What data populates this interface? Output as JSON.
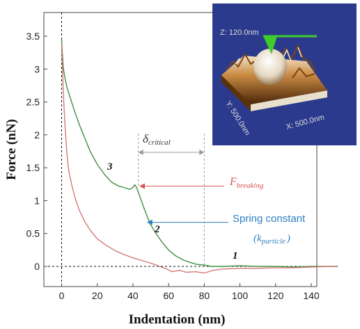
{
  "chart_data": {
    "type": "line",
    "xlabel": "Indentation (nm)",
    "ylabel": "Force (nN)",
    "xlim": [
      -5,
      157
    ],
    "ylim": [
      -0.2,
      3.55
    ],
    "xticks": [
      0,
      20,
      40,
      60,
      80,
      100,
      120,
      140
    ],
    "yticks": [
      0,
      0.5,
      1,
      1.5,
      2,
      2.5,
      3,
      3.5
    ],
    "xtick_labels": [
      "0",
      "20",
      "40",
      "60",
      "80",
      "100",
      "120",
      "140"
    ],
    "ytick_labels": [
      "0",
      "0.5",
      "1",
      "1.5",
      "2",
      "2.5",
      "3",
      "3.5"
    ],
    "grid": false,
    "legend": "none",
    "series": [
      {
        "color": "#3f8f3f",
        "x": [
          0,
          0.5,
          1,
          2,
          3,
          5,
          7,
          10,
          13,
          16,
          20,
          24,
          28,
          32,
          35,
          38,
          40,
          41,
          42,
          43,
          44,
          46,
          48,
          50,
          53,
          56,
          60,
          64,
          68,
          72,
          76,
          80,
          84,
          90,
          100,
          110,
          120,
          130,
          140,
          150,
          155
        ],
        "y": [
          3.45,
          3.2,
          3.0,
          2.85,
          2.72,
          2.55,
          2.38,
          2.15,
          1.95,
          1.75,
          1.55,
          1.4,
          1.28,
          1.22,
          1.2,
          1.17,
          1.2,
          1.24,
          1.2,
          1.13,
          1.05,
          0.9,
          0.76,
          0.63,
          0.5,
          0.38,
          0.25,
          0.16,
          0.1,
          0.06,
          0.03,
          0.02,
          0.0,
          0.0,
          0.01,
          0.0,
          0.0,
          -0.01,
          0.0,
          0.0,
          0.0
        ]
      },
      {
        "color": "#d27a7a",
        "x": [
          0,
          0.5,
          1,
          2,
          3,
          4,
          6,
          8,
          10,
          13,
          16,
          20,
          25,
          30,
          35,
          40,
          45,
          50,
          55,
          58,
          62,
          66,
          70,
          75,
          80,
          85,
          90,
          100,
          110,
          120,
          130,
          140,
          150,
          155
        ],
        "y": [
          3.4,
          3.0,
          2.6,
          2.1,
          1.7,
          1.45,
          1.2,
          1.0,
          0.85,
          0.68,
          0.55,
          0.42,
          0.32,
          0.24,
          0.18,
          0.13,
          0.09,
          0.05,
          0.0,
          -0.03,
          -0.08,
          -0.06,
          -0.09,
          -0.08,
          -0.1,
          -0.06,
          -0.04,
          -0.03,
          -0.03,
          -0.02,
          -0.02,
          -0.01,
          0.0,
          0.0
        ]
      }
    ],
    "annotations": {
      "delta_label": "δ",
      "delta_sub": "critical",
      "delta_x": [
        43,
        80
      ],
      "breaking_label": "F",
      "breaking_sub": "breaking",
      "breaking_point": [
        42,
        1.22
      ],
      "spring_line1": "Spring constant",
      "spring_paren_open": "(",
      "spring_k": "k",
      "spring_sub": "particle",
      "spring_paren_close": ")",
      "spring_point": [
        47,
        0.67
      ],
      "markers": [
        "3",
        "2",
        "1"
      ]
    }
  },
  "inset": {
    "z_label": "Z: 120.0nm",
    "y_label": "Y: 500.0nm",
    "x_label": "X: 500.0nm"
  },
  "colors": {
    "green": "#3f8f3f",
    "red": "#d27a7a",
    "red_annotation": "#d9534f",
    "blue_annotation": "#2f7fc1",
    "inset_bg": "#2b3a8c"
  }
}
